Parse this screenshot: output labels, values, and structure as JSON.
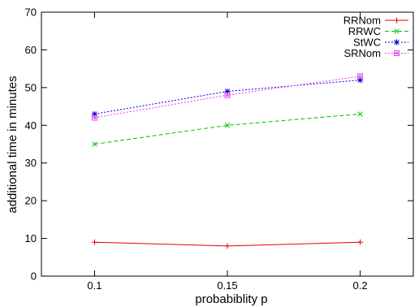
{
  "chart_data": {
    "type": "line",
    "title": "",
    "xlabel": "probabiblity p",
    "ylabel": "additional time in minutes",
    "x": [
      0.1,
      0.15,
      0.2
    ],
    "x_tick_labels": [
      "0.1",
      "0.15",
      "0.2"
    ],
    "xlim": [
      0.08,
      0.22
    ],
    "ylim": [
      0,
      70
    ],
    "y_ticks": [
      0,
      10,
      20,
      30,
      40,
      50,
      60,
      70
    ],
    "grid": false,
    "legend_position": "top-right",
    "series": [
      {
        "name": "RRNom",
        "color": "#e8000b",
        "marker": "plus",
        "dash": "solid",
        "values": [
          9,
          8,
          9
        ]
      },
      {
        "name": "RRWC",
        "color": "#00c000",
        "marker": "cross",
        "dash": "dashed",
        "values": [
          35,
          40,
          43
        ]
      },
      {
        "name": "StWC",
        "color": "#0000e0",
        "marker": "star",
        "dash": "dotted",
        "values": [
          43,
          49,
          52
        ]
      },
      {
        "name": "SRNom",
        "color": "#e040e0",
        "marker": "square",
        "dash": "dotted",
        "values": [
          42,
          48,
          53
        ]
      }
    ]
  }
}
